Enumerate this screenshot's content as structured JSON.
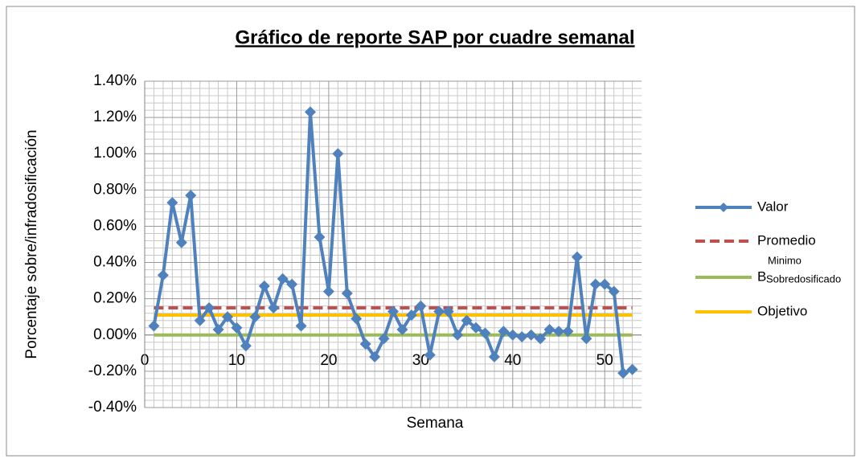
{
  "chart_data": {
    "type": "line",
    "title": "Gráfico de reporte SAP por cuadre semanal",
    "x_label": "Semana",
    "y_label": "Porcentaje sobre/infradosificación",
    "x": [
      1,
      2,
      3,
      4,
      5,
      6,
      7,
      8,
      9,
      10,
      11,
      12,
      13,
      14,
      15,
      16,
      17,
      18,
      19,
      20,
      21,
      22,
      23,
      24,
      25,
      26,
      27,
      28,
      29,
      30,
      31,
      32,
      33,
      34,
      35,
      36,
      37,
      38,
      39,
      40,
      41,
      42,
      43,
      44,
      45,
      46,
      47,
      48,
      49,
      50,
      51,
      52,
      53
    ],
    "series": [
      {
        "name": "Valor",
        "color": "#4f81bd",
        "style": "solid",
        "marker": "diamond",
        "values": [
          0.05,
          0.33,
          0.73,
          0.51,
          0.77,
          0.08,
          0.15,
          0.03,
          0.1,
          0.04,
          -0.06,
          0.1,
          0.27,
          0.15,
          0.31,
          0.28,
          0.05,
          1.23,
          0.54,
          0.24,
          1.0,
          0.23,
          0.09,
          -0.05,
          -0.12,
          -0.02,
          0.13,
          0.03,
          0.11,
          0.16,
          -0.11,
          0.13,
          0.13,
          0.0,
          0.08,
          0.04,
          0.01,
          -0.12,
          0.02,
          0.0,
          -0.01,
          0.0,
          -0.02,
          0.03,
          0.02,
          0.02,
          0.43,
          -0.02,
          0.28,
          0.28,
          0.24,
          -0.21,
          -0.19
        ]
      },
      {
        "name": "Promedio",
        "color": "#c0504d",
        "style": "dashed",
        "values": [
          0.15,
          0.15,
          0.15,
          0.15,
          0.15,
          0.15,
          0.15,
          0.15,
          0.15,
          0.15,
          0.15,
          0.15,
          0.15,
          0.15,
          0.15,
          0.15,
          0.15,
          0.15,
          0.15,
          0.15,
          0.15,
          0.15,
          0.15,
          0.15,
          0.15,
          0.15,
          0.15,
          0.15,
          0.15,
          0.15,
          0.15,
          0.15,
          0.15,
          0.15,
          0.15,
          0.15,
          0.15,
          0.15,
          0.15,
          0.15,
          0.15,
          0.15,
          0.15,
          0.15,
          0.15,
          0.15,
          0.15,
          0.15,
          0.15,
          0.15,
          0.15,
          0.15,
          0.15
        ]
      },
      {
        "name": "B",
        "superscript": "Minimo",
        "subscript": "Sobredosificado",
        "color": "#9bbb59",
        "style": "solid",
        "values": [
          0,
          0,
          0,
          0,
          0,
          0,
          0,
          0,
          0,
          0,
          0,
          0,
          0,
          0,
          0,
          0,
          0,
          0,
          0,
          0,
          0,
          0,
          0,
          0,
          0,
          0,
          0,
          0,
          0,
          0,
          0,
          0,
          0,
          0,
          0,
          0,
          0,
          0,
          0,
          0,
          0,
          0,
          0,
          0,
          0,
          0,
          0,
          0,
          0,
          0,
          0,
          0,
          0
        ]
      },
      {
        "name": "Objetivo",
        "color": "#ffc000",
        "style": "solid",
        "values": [
          0.11,
          0.11,
          0.11,
          0.11,
          0.11,
          0.11,
          0.11,
          0.11,
          0.11,
          0.11,
          0.11,
          0.11,
          0.11,
          0.11,
          0.11,
          0.11,
          0.11,
          0.11,
          0.11,
          0.11,
          0.11,
          0.11,
          0.11,
          0.11,
          0.11,
          0.11,
          0.11,
          0.11,
          0.11,
          0.11,
          0.11,
          0.11,
          0.11,
          0.11,
          0.11,
          0.11,
          0.11,
          0.11,
          0.11,
          0.11,
          0.11,
          0.11,
          0.11,
          0.11,
          0.11,
          0.11,
          0.11,
          0.11,
          0.11,
          0.11,
          0.11,
          0.11,
          0.11
        ]
      }
    ],
    "xlim": [
      0,
      54
    ],
    "xticks": [
      0,
      10,
      20,
      30,
      40,
      50
    ],
    "ylim": [
      -0.4,
      1.4
    ],
    "yticks": [
      {
        "value": -0.4,
        "label": "-0.40%"
      },
      {
        "value": -0.2,
        "label": "-0.20%"
      },
      {
        "value": 0,
        "label": "0.00%"
      },
      {
        "value": 0.2,
        "label": "0.20%"
      },
      {
        "value": 0.4,
        "label": "0.40%"
      },
      {
        "value": 0.6,
        "label": "0.60%"
      },
      {
        "value": 0.8,
        "label": "0.80%"
      },
      {
        "value": 1.0,
        "label": "1.00%"
      },
      {
        "value": 1.2,
        "label": "1.20%"
      },
      {
        "value": 1.4,
        "label": "1.40%"
      }
    ],
    "grid": true,
    "legend": "right"
  }
}
